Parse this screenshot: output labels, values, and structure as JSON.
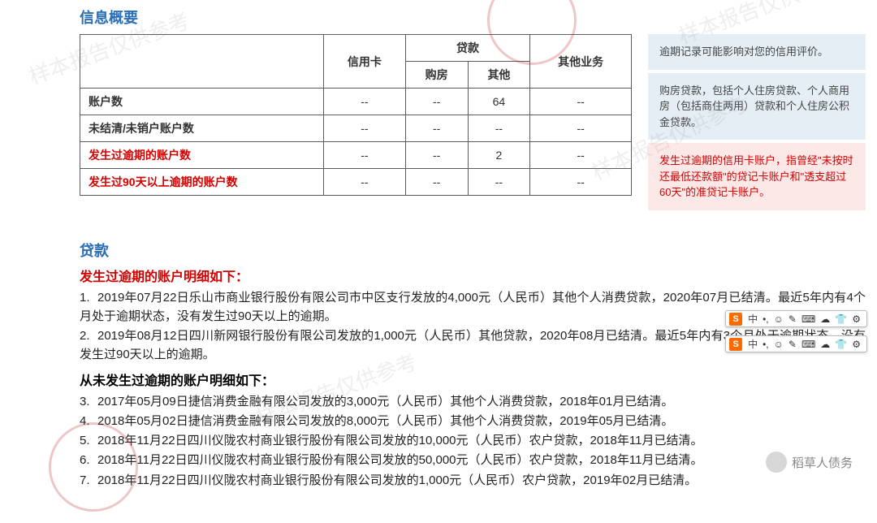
{
  "overview": {
    "title": "信息概要",
    "columns": {
      "credit_card": "信用卡",
      "loan": "贷款",
      "loan_house": "购房",
      "loan_other": "其他",
      "other_biz": "其他业务"
    },
    "rows": [
      {
        "label": "账户数",
        "cc": "--",
        "house": "--",
        "other": "64",
        "biz": "--",
        "red": false
      },
      {
        "label": "未结清/未销户账户数",
        "cc": "--",
        "house": "--",
        "other": "--",
        "biz": "--",
        "red": false
      },
      {
        "label": "发生过逾期的账户数",
        "cc": "--",
        "house": "--",
        "other": "2",
        "biz": "--",
        "red": true
      },
      {
        "label": "发生过90天以上逾期的账户数",
        "cc": "--",
        "house": "--",
        "other": "--",
        "biz": "--",
        "red": true
      }
    ],
    "table_style": {
      "border_color": "#5b5b5b",
      "header_bg": "#ffffff"
    }
  },
  "side_notes": [
    {
      "kind": "blue",
      "text": "逾期记录可能影响对您的信用评价。"
    },
    {
      "kind": "blue",
      "text": "购房贷款，包括个人住房贷款、个人商用房（包括商住两用）贷款和个人住房公积金贷款。"
    },
    {
      "kind": "red",
      "text": "发生过逾期的信用卡账户，指曾经\"未按时还最低还款额\"的贷记卡账户和\"透支超过60天\"的准贷记卡账户。"
    }
  ],
  "loan": {
    "title": "贷款",
    "overdue_heading": "发生过逾期的账户明细如下：",
    "overdue_items": [
      "2019年07月22日乐山市商业银行股份有限公司市中区支行发放的4,000元（人民币）其他个人消费贷款，2020年07月已结清。最近5年内有4个月处于逾期状态，没有发生过90天以上的逾期。",
      "2019年08月12日四川新网银行股份有限公司发放的1,000元（人民币）其他贷款，2020年08月已结清。最近5年内有3个月处于逾期状态，没有发生过90天以上的逾期。"
    ],
    "no_overdue_heading": "从未发生过逾期的账户明细如下：",
    "no_overdue_start": 3,
    "no_overdue_items": [
      "2017年05月09日捷信消费金融有限公司发放的3,000元（人民币）其他个人消费贷款，2018年01月已结清。",
      "2018年05月02日捷信消费金融有限公司发放的8,000元（人民币）其他个人消费贷款，2019年05月已结清。",
      "2018年11月22日四川仪陇农村商业银行股份有限公司发放的10,000元（人民币）农户贷款，2018年11月已结清。",
      "2018年11月22日四川仪陇农村商业银行股份有限公司发放的50,000元（人民币）农户贷款，2018年11月已结清。",
      "2018年11月22日四川仪陇农村商业银行股份有限公司发放的1,000元（人民币）农户贷款，2019年02月已结清。"
    ]
  },
  "ime": {
    "badge": "S",
    "lang": "中",
    "icons": [
      "•,",
      "☺",
      "✎",
      "⌨",
      "☁",
      "👕",
      "⚙"
    ]
  },
  "wechat_tag": "稻草人债务",
  "watermark_text": "样本报告仅供参考",
  "colors": {
    "title": "#2a6eb6",
    "red": "#d40000",
    "side_blue_bg": "#e5edf5",
    "side_red_bg": "#fde8e8"
  }
}
